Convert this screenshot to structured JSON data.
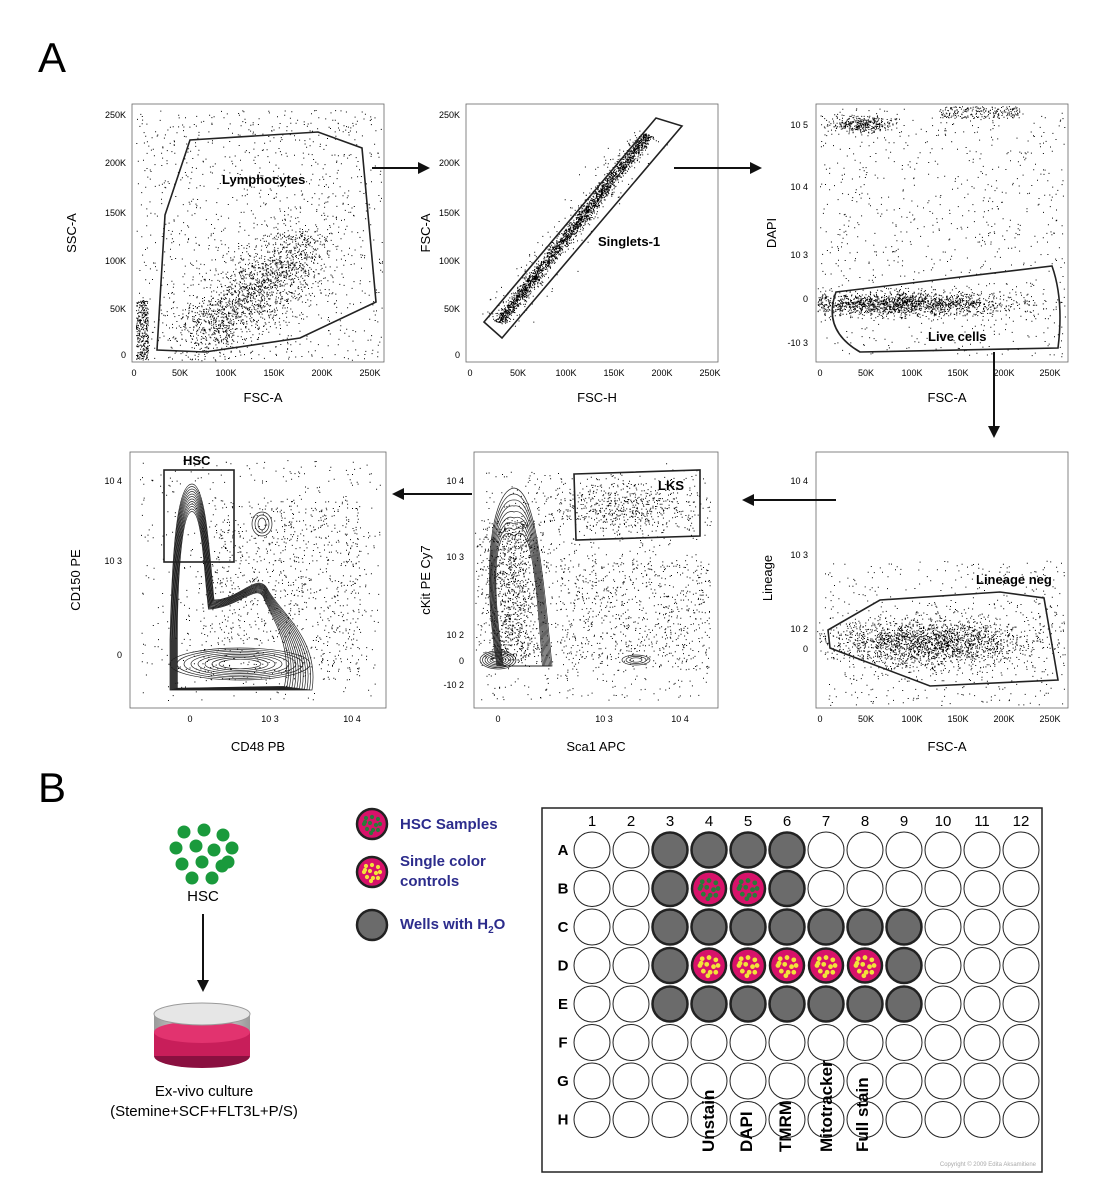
{
  "panel_a": {
    "letter": "A",
    "plots": [
      {
        "key": "p1",
        "xlabel": "FSC-A",
        "ylabel": "SSC-A",
        "gate_label": "Lymphocytes",
        "xticks": [
          "0",
          "50K",
          "100K",
          "150K",
          "200K",
          "250K"
        ],
        "yticks": [
          "0",
          "50K",
          "100K",
          "150K",
          "200K",
          "250K"
        ]
      },
      {
        "key": "p2",
        "xlabel": "FSC-H",
        "ylabel": "FSC-A",
        "gate_label": "Singlets-1",
        "xticks": [
          "0",
          "50K",
          "100K",
          "150K",
          "200K",
          "250K"
        ],
        "yticks": [
          "0",
          "50K",
          "100K",
          "150K",
          "200K",
          "250K"
        ]
      },
      {
        "key": "p3",
        "xlabel": "FSC-A",
        "ylabel": "DAPI",
        "gate_label": "Live cells",
        "xticks": [
          "0",
          "50K",
          "100K",
          "150K",
          "200K",
          "250K"
        ],
        "yticks": [
          "-10 3",
          "0",
          "10 3",
          "10 4",
          "10 5"
        ]
      },
      {
        "key": "p4",
        "xlabel": "FSC-A",
        "ylabel": "Lineage",
        "gate_label": "Lineage neg",
        "xticks": [
          "0",
          "50K",
          "100K",
          "150K",
          "200K",
          "250K"
        ],
        "yticks": [
          "0",
          "10 2",
          "10 3",
          "10 4"
        ]
      },
      {
        "key": "p5",
        "xlabel": "Sca1 APC",
        "ylabel": "cKit PE Cy7",
        "gate_label": "LKS",
        "xticks": [
          "0",
          "10 3",
          "10 4"
        ],
        "yticks": [
          "-10 2",
          "0",
          "10 2",
          "10 3",
          "10 4"
        ]
      },
      {
        "key": "p6",
        "xlabel": "CD48 PB",
        "ylabel": "CD150 PE",
        "gate_label": "HSC",
        "xticks": [
          "0",
          "10 3",
          "10 4"
        ],
        "yticks": [
          "0",
          "10 3",
          "10 4"
        ]
      }
    ]
  },
  "panel_b": {
    "letter": "B",
    "hsc_label": "HSC",
    "culture_label_1": "Ex-vivo culture",
    "culture_label_2": "(Stemine+SCF+FLT3L+P/S)",
    "legend": {
      "hsc_samples": "HSC Samples",
      "single_color_1": "Single color",
      "single_color_2": "controls",
      "wells_water": "Wells with H",
      "water_sub": "2",
      "water_suffix": "O"
    },
    "plate": {
      "columns": [
        "1",
        "2",
        "3",
        "4",
        "5",
        "6",
        "7",
        "8",
        "9",
        "10",
        "11",
        "12"
      ],
      "rows": [
        "A",
        "B",
        "C",
        "D",
        "E",
        "F",
        "G",
        "H"
      ],
      "stain_labels": [
        "Unstain",
        "DAPI",
        "TMRM",
        "Mitotracker",
        "Full stain"
      ],
      "copyright": "Copyright © 2009 Edita Aksamitiene"
    }
  },
  "colors": {
    "magenta": "#d8126a",
    "green": "#1a9a3c",
    "yellow": "#f2e33a",
    "well_gray": "#6b6b6b",
    "text_blue": "#2c2c8c",
    "dish_pink": "#c81e5a"
  }
}
